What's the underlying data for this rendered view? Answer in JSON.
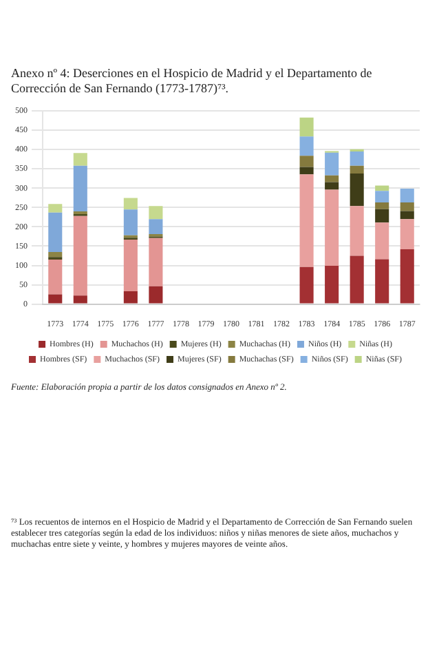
{
  "chart_data": {
    "type": "bar",
    "stacked": true,
    "title": "Anexo nº 4: Deserciones en el Hospicio de Madrid y el Departamento de Corrección de San Fernando (1773-1787)⁷³.",
    "categories": [
      "1773",
      "1774",
      "1775",
      "1776",
      "1777",
      "1778",
      "1779",
      "1780",
      "1781",
      "1782",
      "1783",
      "1784",
      "1785",
      "1786",
      "1787"
    ],
    "series": [
      {
        "name": "Hombres (H)",
        "color": "#9b2a2c",
        "values": [
          25,
          22,
          null,
          33,
          46,
          null,
          null,
          null,
          null,
          null,
          null,
          null,
          null,
          null,
          null
        ]
      },
      {
        "name": "Muchachos (H)",
        "color": "#e39593",
        "values": [
          90,
          206,
          null,
          134,
          125,
          null,
          null,
          null,
          null,
          null,
          null,
          null,
          null,
          null,
          null
        ]
      },
      {
        "name": "Mujeres (H)",
        "color": "#4a4a1c",
        "values": [
          7,
          5,
          null,
          5,
          4,
          null,
          null,
          null,
          null,
          null,
          null,
          null,
          null,
          null,
          null
        ]
      },
      {
        "name": "Muchachas (H)",
        "color": "#8c8445",
        "values": [
          13,
          7,
          null,
          6,
          6,
          null,
          null,
          null,
          null,
          null,
          null,
          null,
          null,
          null,
          null
        ]
      },
      {
        "name": "Niños (H)",
        "color": "#7fa8d9",
        "values": [
          102,
          118,
          null,
          67,
          39,
          null,
          null,
          null,
          null,
          null,
          null,
          null,
          null,
          null,
          null
        ]
      },
      {
        "name": "Niñas (H)",
        "color": "#c6d98e",
        "values": [
          22,
          33,
          null,
          30,
          34,
          null,
          null,
          null,
          null,
          null,
          null,
          null,
          null,
          null,
          null
        ]
      },
      {
        "name": "Hombres (SF)",
        "color": "#a33033",
        "values": [
          null,
          null,
          null,
          null,
          null,
          null,
          null,
          null,
          null,
          null,
          96,
          99,
          125,
          116,
          142
        ]
      },
      {
        "name": "Muchachos (SF)",
        "color": "#e8a09e",
        "values": [
          null,
          null,
          null,
          null,
          null,
          null,
          null,
          null,
          null,
          null,
          240,
          197,
          129,
          95,
          78
        ]
      },
      {
        "name": "Mujeres (SF)",
        "color": "#3f3d18",
        "values": [
          null,
          null,
          null,
          null,
          null,
          null,
          null,
          null,
          null,
          null,
          19,
          20,
          84,
          35,
          21
        ]
      },
      {
        "name": "Muchachas (SF)",
        "color": "#857a3e",
        "values": [
          null,
          null,
          null,
          null,
          null,
          null,
          null,
          null,
          null,
          null,
          29,
          17,
          20,
          17,
          22
        ]
      },
      {
        "name": "Niños (SF)",
        "color": "#86b0e0",
        "values": [
          null,
          null,
          null,
          null,
          null,
          null,
          null,
          null,
          null,
          null,
          50,
          59,
          37,
          30,
          36
        ]
      },
      {
        "name": "Niñas (SF)",
        "color": "#bcd485",
        "values": [
          null,
          null,
          null,
          null,
          null,
          null,
          null,
          null,
          null,
          null,
          49,
          4,
          6,
          14,
          null
        ]
      }
    ],
    "ylim": [
      0,
      500
    ],
    "yticks": [
      0,
      50,
      100,
      150,
      200,
      250,
      300,
      350,
      400,
      450,
      500
    ],
    "grid": "y",
    "legend": "bottom",
    "annotations": [
      "Fuente: Elaboración propia a partir de los datos consignados en Anexo nº 2.",
      "⁷³ Los recuentos de internos en el Hospicio de Madrid y el Departamento de Corrección de San Fernando suelen establecer tres categorías según la edad de los individuos: niños y niñas menores de siete años, muchachos y muchachas entre siete y veinte, y hombres y mujeres mayores de veinte años."
    ]
  }
}
